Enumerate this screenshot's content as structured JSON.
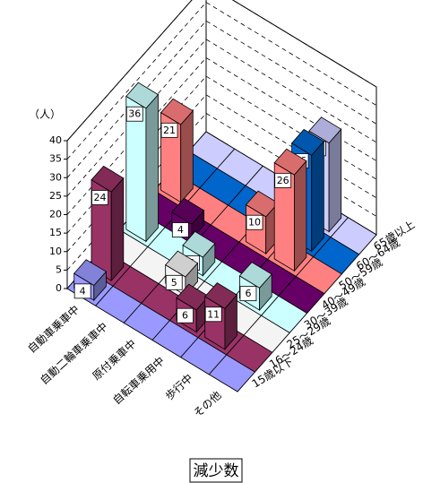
{
  "chart_data": {
    "type": "bar3d",
    "title": "減少数",
    "y_label": "（人）",
    "categories": [
      "自動車乗車中",
      "自動二輪車乗車中",
      "原付乗車中",
      "自転車乗用中",
      "歩行中",
      "その他"
    ],
    "series": [
      {
        "name": "15歳以下",
        "color": "#9999ff",
        "values": [
          4,
          0,
          0,
          0,
          0,
          0
        ]
      },
      {
        "name": "16～24歳",
        "color": "#993366",
        "values": [
          24,
          0,
          0,
          6,
          11,
          0
        ]
      },
      {
        "name": "25～29歳",
        "color": "#f4f4f4",
        "values": [
          0,
          0,
          5,
          0,
          0,
          0
        ]
      },
      {
        "name": "30～39歳",
        "color": "#ccffff",
        "values": [
          36,
          0,
          5,
          0,
          6,
          0
        ]
      },
      {
        "name": "40～49歳",
        "color": "#660066",
        "values": [
          0,
          4,
          0,
          0,
          0,
          0
        ]
      },
      {
        "name": "50～59歳",
        "color": "#ff8080",
        "values": [
          21,
          0,
          0,
          10,
          26,
          0
        ]
      },
      {
        "name": "60～64歳",
        "color": "#0066cc",
        "values": [
          0,
          0,
          0,
          0,
          26,
          0
        ]
      },
      {
        "name": "65歳以上",
        "color": "#ccccff",
        "values": [
          0,
          0,
          0,
          0,
          24,
          0
        ]
      }
    ],
    "ylim": [
      0,
      40
    ],
    "yticks": [
      0,
      5,
      10,
      15,
      20,
      25,
      30,
      35,
      40
    ],
    "grid": true
  }
}
